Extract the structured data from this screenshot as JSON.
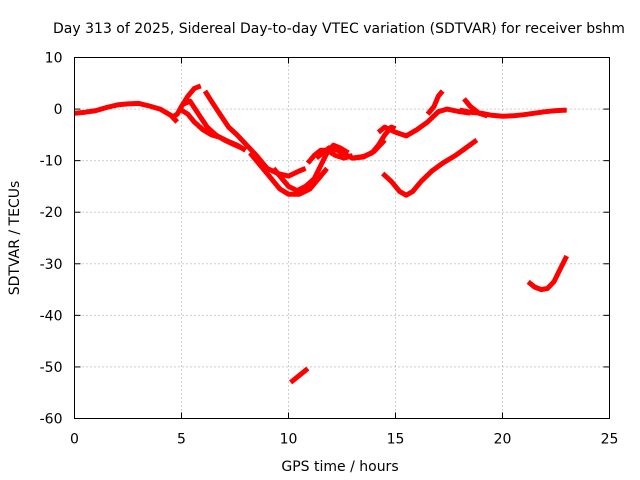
{
  "chart_data": {
    "type": "scatter",
    "title": "Day 313 of 2025, Sidereal Day-to-day VTEC variation (SDTVAR) for receiver bshm",
    "xlabel": "GPS time / hours",
    "ylabel": "SDTVAR / TECUs",
    "xlim": [
      0,
      25
    ],
    "ylim": [
      -60,
      10
    ],
    "xticks": [
      "0",
      "5",
      "10",
      "15",
      "20",
      "25"
    ],
    "yticks": [
      "10",
      "0",
      "-10",
      "-20",
      "-30",
      "-40",
      "-50",
      "-60"
    ],
    "grid": true,
    "color": "#ff0000",
    "series": [
      {
        "name": "arc-1",
        "points": [
          [
            0.0,
            -0.8
          ],
          [
            0.5,
            -0.6
          ],
          [
            1.0,
            -0.3
          ],
          [
            1.5,
            0.3
          ],
          [
            2.0,
            0.8
          ],
          [
            2.5,
            1.0
          ],
          [
            3.0,
            1.1
          ],
          [
            3.5,
            0.6
          ],
          [
            4.0,
            0.0
          ],
          [
            4.5,
            -1.2
          ],
          [
            4.8,
            -2.5
          ]
        ]
      },
      {
        "name": "arc-2",
        "points": [
          [
            4.6,
            -1.5
          ],
          [
            4.8,
            -1.0
          ],
          [
            5.0,
            0.5
          ],
          [
            5.3,
            2.5
          ],
          [
            5.6,
            4.0
          ],
          [
            5.9,
            4.5
          ]
        ]
      },
      {
        "name": "arc-3",
        "points": [
          [
            5.1,
            1.0
          ],
          [
            5.4,
            1.5
          ],
          [
            5.8,
            -1.0
          ],
          [
            6.2,
            -3.5
          ],
          [
            6.6,
            -5.0
          ],
          [
            7.0,
            -6.0
          ],
          [
            7.4,
            -6.8
          ],
          [
            7.8,
            -7.5
          ]
        ]
      },
      {
        "name": "arc-4",
        "points": [
          [
            5.0,
            -0.2
          ],
          [
            5.3,
            -1.0
          ],
          [
            5.6,
            -2.5
          ],
          [
            6.0,
            -4.0
          ],
          [
            6.4,
            -5.0
          ],
          [
            6.8,
            -5.5
          ],
          [
            7.2,
            -6.3
          ],
          [
            7.6,
            -7.0
          ],
          [
            8.0,
            -8.0
          ]
        ]
      },
      {
        "name": "arc-5",
        "points": [
          [
            6.1,
            3.5
          ],
          [
            6.4,
            1.5
          ],
          [
            6.8,
            -1.0
          ],
          [
            7.2,
            -3.5
          ],
          [
            7.6,
            -5.0
          ],
          [
            8.0,
            -6.8
          ],
          [
            8.5,
            -9.0
          ],
          [
            9.0,
            -11.5
          ],
          [
            9.5,
            -12.5
          ],
          [
            10.0,
            -13.0
          ],
          [
            10.5,
            -12.0
          ],
          [
            10.8,
            -11.5
          ]
        ]
      },
      {
        "name": "arc-6",
        "points": [
          [
            8.2,
            -8.5
          ],
          [
            8.6,
            -10.5
          ],
          [
            9.0,
            -12.5
          ],
          [
            9.3,
            -14.0
          ],
          [
            9.6,
            -15.5
          ],
          [
            10.0,
            -16.5
          ],
          [
            10.5,
            -16.5
          ],
          [
            11.0,
            -15.5
          ],
          [
            11.5,
            -13.0
          ],
          [
            11.8,
            -11.5
          ]
        ]
      },
      {
        "name": "arc-7",
        "points": [
          [
            9.3,
            -11.5
          ],
          [
            9.6,
            -13.0
          ],
          [
            10.0,
            -15.0
          ],
          [
            10.4,
            -15.8
          ],
          [
            10.8,
            -15.0
          ],
          [
            11.2,
            -13.5
          ],
          [
            11.5,
            -11.0
          ],
          [
            11.8,
            -8.5
          ],
          [
            12.1,
            -7.0
          ],
          [
            12.4,
            -7.5
          ],
          [
            12.8,
            -8.5
          ]
        ]
      },
      {
        "name": "arc-8",
        "points": [
          [
            10.9,
            -10.5
          ],
          [
            11.2,
            -9.0
          ],
          [
            11.5,
            -8.0
          ],
          [
            11.8,
            -8.0
          ],
          [
            12.2,
            -9.0
          ],
          [
            12.6,
            -9.5
          ],
          [
            13.0,
            -9.0
          ]
        ]
      },
      {
        "name": "arc-9",
        "points": [
          [
            11.3,
            -9.5
          ],
          [
            11.6,
            -8.5
          ],
          [
            11.9,
            -7.5
          ],
          [
            12.3,
            -8.0
          ],
          [
            12.7,
            -9.0
          ],
          [
            13.0,
            -9.5
          ],
          [
            13.5,
            -9.2
          ],
          [
            13.9,
            -8.5
          ],
          [
            14.2,
            -7.0
          ],
          [
            14.5,
            -5.0
          ],
          [
            14.8,
            -3.5
          ],
          [
            15.0,
            -3.8
          ]
        ]
      },
      {
        "name": "arc-10",
        "points": [
          [
            12.5,
            -8.5
          ],
          [
            13.0,
            -9.5
          ],
          [
            13.5,
            -9.3
          ],
          [
            14.0,
            -8.2
          ],
          [
            14.5,
            -6.0
          ]
        ]
      },
      {
        "name": "arc-11",
        "points": [
          [
            14.2,
            -4.5
          ],
          [
            14.5,
            -3.5
          ],
          [
            15.0,
            -4.5
          ],
          [
            15.5,
            -5.2
          ],
          [
            16.0,
            -4.0
          ],
          [
            16.5,
            -2.5
          ],
          [
            17.0,
            -0.5
          ],
          [
            17.4,
            0.0
          ],
          [
            18.0,
            -0.5
          ],
          [
            18.5,
            -0.8
          ]
        ]
      },
      {
        "name": "arc-12",
        "points": [
          [
            16.5,
            -1.0
          ],
          [
            16.8,
            0.5
          ],
          [
            17.0,
            2.5
          ],
          [
            17.2,
            3.5
          ]
        ]
      },
      {
        "name": "arc-13",
        "points": [
          [
            18.0,
            -0.2
          ],
          [
            18.5,
            -0.6
          ],
          [
            19.0,
            -0.8
          ],
          [
            19.5,
            -1.2
          ],
          [
            20.0,
            -1.4
          ],
          [
            20.5,
            -1.3
          ],
          [
            21.0,
            -1.1
          ],
          [
            21.5,
            -0.8
          ],
          [
            22.0,
            -0.5
          ],
          [
            22.5,
            -0.3
          ],
          [
            23.0,
            -0.2
          ]
        ]
      },
      {
        "name": "arc-14",
        "points": [
          [
            18.2,
            2.0
          ],
          [
            18.5,
            0.5
          ],
          [
            18.9,
            -0.8
          ],
          [
            19.3,
            -1.3
          ]
        ]
      },
      {
        "name": "arc-15",
        "points": [
          [
            14.4,
            -12.5
          ],
          [
            14.8,
            -14.0
          ],
          [
            15.2,
            -16.0
          ],
          [
            15.5,
            -16.7
          ],
          [
            15.8,
            -16.0
          ],
          [
            16.2,
            -14.0
          ],
          [
            16.7,
            -12.0
          ],
          [
            17.2,
            -10.5
          ],
          [
            17.8,
            -9.0
          ],
          [
            18.3,
            -7.5
          ],
          [
            18.8,
            -6.0
          ]
        ]
      },
      {
        "name": "arc-16",
        "points": [
          [
            10.1,
            -53.0
          ],
          [
            10.4,
            -52.0
          ],
          [
            10.7,
            -51.0
          ],
          [
            10.9,
            -50.3
          ]
        ]
      },
      {
        "name": "arc-17",
        "points": [
          [
            21.2,
            -33.5
          ],
          [
            21.5,
            -34.5
          ],
          [
            21.8,
            -35.0
          ],
          [
            22.1,
            -34.8
          ],
          [
            22.4,
            -33.5
          ],
          [
            22.7,
            -31.0
          ],
          [
            23.0,
            -28.5
          ]
        ]
      }
    ]
  }
}
